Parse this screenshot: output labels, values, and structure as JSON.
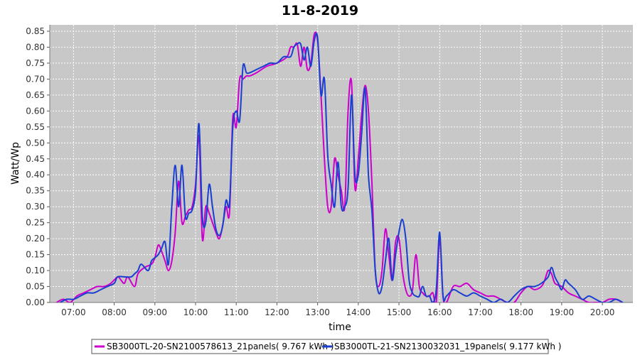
{
  "chart_data": {
    "type": "line",
    "title": "11-8-2019",
    "xlabel": "time",
    "ylabel": "Watt/Wp",
    "xlim": [
      "06:25",
      "20:45"
    ],
    "ylim": [
      0,
      0.87
    ],
    "x_ticks": [
      "07:00",
      "08:00",
      "09:00",
      "10:00",
      "11:00",
      "12:00",
      "13:00",
      "14:00",
      "15:00",
      "16:00",
      "17:00",
      "18:00",
      "19:00",
      "20:00"
    ],
    "y_ticks": [
      "0.00",
      "0.05",
      "0.10",
      "0.15",
      "0.20",
      "0.25",
      "0.30",
      "0.35",
      "0.40",
      "0.45",
      "0.50",
      "0.55",
      "0.60",
      "0.65",
      "0.70",
      "0.75",
      "0.80",
      "0.85"
    ],
    "grid": true,
    "plot_background": "#c8c8c8",
    "legend_position": "bottom",
    "series": [
      {
        "name": "SB3000TL-20-SN2100578613_21panels( 9.767 kWh )",
        "color": "#cc00cc",
        "x": [
          "06:35",
          "06:45",
          "06:55",
          "07:05",
          "07:15",
          "07:25",
          "07:35",
          "07:45",
          "07:55",
          "08:05",
          "08:10",
          "08:15",
          "08:20",
          "08:30",
          "08:35",
          "08:45",
          "08:55",
          "09:00",
          "09:05",
          "09:10",
          "09:15",
          "09:20",
          "09:25",
          "09:30",
          "09:35",
          "09:40",
          "09:45",
          "09:50",
          "09:55",
          "10:00",
          "10:05",
          "10:10",
          "10:15",
          "10:20",
          "10:25",
          "10:30",
          "10:35",
          "10:40",
          "10:45",
          "10:50",
          "10:55",
          "11:00",
          "11:05",
          "11:10",
          "11:15",
          "11:20",
          "11:30",
          "11:45",
          "12:00",
          "12:15",
          "12:20",
          "12:25",
          "12:30",
          "12:35",
          "12:40",
          "12:45",
          "12:50",
          "12:55",
          "13:00",
          "13:05",
          "13:10",
          "13:15",
          "13:20",
          "13:25",
          "13:30",
          "13:35",
          "13:40",
          "13:45",
          "13:50",
          "13:55",
          "14:00",
          "14:05",
          "14:10",
          "14:15",
          "14:20",
          "14:25",
          "14:30",
          "14:35",
          "14:40",
          "14:45",
          "14:50",
          "14:55",
          "15:00",
          "15:05",
          "15:10",
          "15:15",
          "15:20",
          "15:25",
          "15:30",
          "15:35",
          "15:40",
          "15:45",
          "15:50",
          "15:55",
          "16:00",
          "16:05",
          "16:10",
          "16:20",
          "16:30",
          "16:40",
          "16:50",
          "17:00",
          "17:10",
          "17:20",
          "17:30",
          "17:40",
          "17:50",
          "18:00",
          "18:10",
          "18:20",
          "18:30",
          "18:35",
          "18:40",
          "18:45",
          "18:50",
          "19:00",
          "19:10",
          "19:20",
          "19:30",
          "19:40",
          "19:50",
          "20:00",
          "20:10",
          "20:20",
          "20:30"
        ],
        "values": [
          0.0,
          0.01,
          0.0,
          0.02,
          0.03,
          0.04,
          0.05,
          0.05,
          0.06,
          0.08,
          0.07,
          0.06,
          0.08,
          0.05,
          0.09,
          0.11,
          0.12,
          0.14,
          0.18,
          0.16,
          0.13,
          0.1,
          0.13,
          0.22,
          0.38,
          0.25,
          0.27,
          0.29,
          0.3,
          0.37,
          0.52,
          0.2,
          0.3,
          0.28,
          0.25,
          0.22,
          0.2,
          0.24,
          0.3,
          0.28,
          0.58,
          0.55,
          0.7,
          0.7,
          0.71,
          0.71,
          0.72,
          0.74,
          0.75,
          0.77,
          0.8,
          0.8,
          0.81,
          0.74,
          0.8,
          0.73,
          0.75,
          0.84,
          0.82,
          0.65,
          0.45,
          0.3,
          0.3,
          0.45,
          0.4,
          0.35,
          0.3,
          0.6,
          0.69,
          0.36,
          0.45,
          0.59,
          0.68,
          0.6,
          0.38,
          0.1,
          0.05,
          0.1,
          0.23,
          0.15,
          0.07,
          0.19,
          0.2,
          0.1,
          0.04,
          0.02,
          0.04,
          0.15,
          0.05,
          0.03,
          0.02,
          0.02,
          0.03,
          0.0,
          0.2,
          0.02,
          0.0,
          0.05,
          0.05,
          0.06,
          0.04,
          0.03,
          0.02,
          0.02,
          0.01,
          0.0,
          0.0,
          0.03,
          0.05,
          0.04,
          0.05,
          0.07,
          0.1,
          0.09,
          0.06,
          0.05,
          0.03,
          0.02,
          0.01,
          0.0,
          0.0,
          0.0,
          0.01,
          0.01,
          0.0
        ]
      },
      {
        "name": "SB3000TL-21-SN2130032031_19panels( 9.177 kWh )",
        "color": "#1a3fd0",
        "x": [
          "06:40",
          "06:50",
          "07:00",
          "07:10",
          "07:20",
          "07:30",
          "07:40",
          "07:50",
          "08:00",
          "08:05",
          "08:15",
          "08:25",
          "08:30",
          "08:35",
          "08:40",
          "08:50",
          "08:55",
          "09:00",
          "09:05",
          "09:10",
          "09:15",
          "09:20",
          "09:25",
          "09:30",
          "09:35",
          "09:40",
          "09:45",
          "09:50",
          "09:55",
          "10:00",
          "10:05",
          "10:10",
          "10:15",
          "10:20",
          "10:25",
          "10:30",
          "10:35",
          "10:40",
          "10:45",
          "10:50",
          "10:55",
          "11:00",
          "11:05",
          "11:10",
          "11:15",
          "11:20",
          "11:30",
          "11:40",
          "11:50",
          "12:00",
          "12:10",
          "12:20",
          "12:25",
          "12:30",
          "12:35",
          "12:40",
          "12:45",
          "12:50",
          "12:55",
          "13:00",
          "13:05",
          "13:10",
          "13:15",
          "13:20",
          "13:25",
          "13:30",
          "13:35",
          "13:40",
          "13:45",
          "13:50",
          "13:55",
          "14:00",
          "14:05",
          "14:10",
          "14:15",
          "14:20",
          "14:25",
          "14:30",
          "14:35",
          "14:40",
          "14:45",
          "14:50",
          "14:55",
          "15:00",
          "15:05",
          "15:10",
          "15:15",
          "15:20",
          "15:25",
          "15:30",
          "15:35",
          "15:40",
          "15:45",
          "15:50",
          "15:55",
          "16:00",
          "16:05",
          "16:10",
          "16:20",
          "16:30",
          "16:40",
          "16:50",
          "17:00",
          "17:10",
          "17:20",
          "17:30",
          "17:40",
          "17:50",
          "18:00",
          "18:10",
          "18:20",
          "18:30",
          "18:40",
          "18:45",
          "18:50",
          "18:55",
          "19:00",
          "19:05",
          "19:10",
          "19:20",
          "19:30",
          "19:40",
          "19:50",
          "20:00",
          "20:10",
          "20:20",
          "20:30"
        ],
        "values": [
          0.0,
          0.01,
          0.01,
          0.02,
          0.03,
          0.03,
          0.04,
          0.05,
          0.06,
          0.08,
          0.08,
          0.08,
          0.09,
          0.1,
          0.12,
          0.1,
          0.13,
          0.14,
          0.15,
          0.17,
          0.19,
          0.12,
          0.3,
          0.43,
          0.3,
          0.43,
          0.27,
          0.28,
          0.29,
          0.35,
          0.56,
          0.27,
          0.25,
          0.37,
          0.3,
          0.23,
          0.21,
          0.24,
          0.32,
          0.31,
          0.55,
          0.6,
          0.57,
          0.74,
          0.72,
          0.72,
          0.73,
          0.74,
          0.75,
          0.75,
          0.77,
          0.77,
          0.8,
          0.81,
          0.81,
          0.76,
          0.8,
          0.74,
          0.82,
          0.83,
          0.65,
          0.7,
          0.46,
          0.37,
          0.3,
          0.44,
          0.3,
          0.3,
          0.36,
          0.65,
          0.4,
          0.4,
          0.53,
          0.67,
          0.4,
          0.29,
          0.1,
          0.03,
          0.05,
          0.13,
          0.2,
          0.07,
          0.15,
          0.22,
          0.26,
          0.2,
          0.07,
          0.03,
          0.02,
          0.02,
          0.05,
          0.02,
          0.02,
          0.0,
          0.04,
          0.22,
          0.02,
          0.02,
          0.04,
          0.03,
          0.02,
          0.03,
          0.02,
          0.01,
          0.0,
          0.01,
          0.0,
          0.02,
          0.04,
          0.05,
          0.05,
          0.06,
          0.08,
          0.11,
          0.08,
          0.06,
          0.04,
          0.07,
          0.06,
          0.04,
          0.01,
          0.02,
          0.01,
          0.0,
          0.0,
          0.01,
          0.0
        ]
      }
    ]
  }
}
